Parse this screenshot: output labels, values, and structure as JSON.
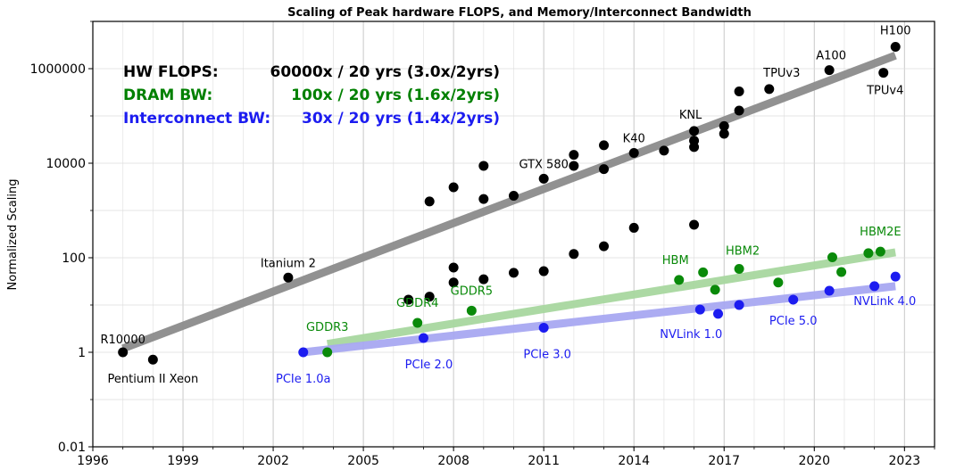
{
  "chart_data": {
    "type": "scatter",
    "title": "Scaling of Peak hardware FLOPS, and Memory/Interconnect Bandwidth",
    "xlabel": "",
    "ylabel": "Normalized Scaling",
    "y_scale": "log",
    "xlim": [
      1996,
      2024
    ],
    "ylim": [
      0.01,
      10000000
    ],
    "x_ticks": [
      "1996",
      "1999",
      "2002",
      "2005",
      "2008",
      "2011",
      "2014",
      "2017",
      "2020",
      "2023"
    ],
    "y_ticks": [
      "0.01",
      "1",
      "100",
      "10000",
      "1000000"
    ],
    "grid": true,
    "legend_position": "top-left",
    "legend": [
      {
        "label": "HW FLOPS:",
        "value": "60000x / 20 yrs (3.0x/2yrs)",
        "color": "#000000"
      },
      {
        "label": "DRAM BW:",
        "value": "100x / 20 yrs (1.6x/2yrs)",
        "color": "#008000"
      },
      {
        "label": "Interconnect BW:",
        "value": "30x / 20 yrs (1.4x/2yrs)",
        "color": "#1c1cf0"
      }
    ],
    "series": [
      {
        "name": "HW FLOPS",
        "color": "#000000",
        "trend_color": "#8c8c8c",
        "trend": [
          [
            1997,
            1.2
          ],
          [
            2022.7,
            1900000
          ]
        ],
        "points": [
          [
            1997.0,
            1.0
          ],
          [
            1998.0,
            0.7
          ],
          [
            2002.5,
            38
          ],
          [
            2006.5,
            13
          ],
          [
            2007.2,
            15
          ],
          [
            2007.2,
            1550
          ],
          [
            2008.0,
            30
          ],
          [
            2008.0,
            62
          ],
          [
            2008.0,
            3100
          ],
          [
            2009.0,
            35
          ],
          [
            2009.0,
            1750
          ],
          [
            2009.0,
            8800
          ],
          [
            2010.0,
            48
          ],
          [
            2010.0,
            2050
          ],
          [
            2011.0,
            52
          ],
          [
            2011.0,
            4700
          ],
          [
            2012.0,
            120
          ],
          [
            2012.0,
            8800
          ],
          [
            2012.0,
            15000
          ],
          [
            2013.0,
            175
          ],
          [
            2013.0,
            7500
          ],
          [
            2013.0,
            24000
          ],
          [
            2014.0,
            430
          ],
          [
            2014.0,
            16500
          ],
          [
            2015.0,
            18500
          ],
          [
            2016.0,
            500
          ],
          [
            2016.0,
            22000
          ],
          [
            2016.0,
            30000
          ],
          [
            2016.0,
            48000
          ],
          [
            2017.0,
            42000
          ],
          [
            2017.0,
            61000
          ],
          [
            2017.5,
            130000
          ],
          [
            2017.5,
            330000
          ],
          [
            2018.5,
            370000
          ],
          [
            2020.5,
            930000
          ],
          [
            2022.3,
            820000
          ],
          [
            2022.7,
            2900000
          ]
        ],
        "labels": [
          {
            "text": "R10000",
            "x": 1997.0,
            "y": 1.0
          },
          {
            "text": "Pentium II Xeon",
            "x": 1998.0,
            "y": 0.7
          },
          {
            "text": "Itanium 2",
            "x": 2002.5,
            "y": 38
          },
          {
            "text": "GTX 580",
            "x": 2011.0,
            "y": 4700
          },
          {
            "text": "K40",
            "x": 2014.0,
            "y": 16500
          },
          {
            "text": "KNL",
            "x": 2016.0,
            "y": 48000
          },
          {
            "text": "TPUv3",
            "x": 2018.5,
            "y": 370000
          },
          {
            "text": "A100",
            "x": 2020.5,
            "y": 930000
          },
          {
            "text": "TPUv4",
            "x": 2022.3,
            "y": 820000
          },
          {
            "text": "H100",
            "x": 2022.7,
            "y": 2900000
          }
        ]
      },
      {
        "name": "DRAM BW",
        "color": "#0a8a0a",
        "trend_color": "#a8d8a0",
        "trend": [
          [
            2003.8,
            1.5
          ],
          [
            2022.7,
            130
          ]
        ],
        "points": [
          [
            2003.8,
            1.0
          ],
          [
            2006.8,
            4.2
          ],
          [
            2008.6,
            7.6
          ],
          [
            2015.5,
            34
          ],
          [
            2016.3,
            49
          ],
          [
            2016.7,
            21
          ],
          [
            2017.5,
            58
          ],
          [
            2018.8,
            30
          ],
          [
            2020.6,
            102
          ],
          [
            2020.9,
            50
          ],
          [
            2021.8,
            125
          ],
          [
            2022.2,
            135
          ]
        ],
        "labels": [
          {
            "text": "GDDR3",
            "x": 2003.8,
            "y": 1.0
          },
          {
            "text": "GDDR4",
            "x": 2006.8,
            "y": 4.2
          },
          {
            "text": "GDDR5",
            "x": 2008.6,
            "y": 7.6
          },
          {
            "text": "HBM",
            "x": 2015.5,
            "y": 34
          },
          {
            "text": "HBM2",
            "x": 2017.5,
            "y": 58
          },
          {
            "text": "HBM2E",
            "x": 2022.2,
            "y": 135
          }
        ]
      },
      {
        "name": "Interconnect BW",
        "color": "#1c1cf0",
        "trend_color": "#a8a8f2",
        "trend": [
          [
            2003,
            1.0
          ],
          [
            2022.7,
            25
          ]
        ],
        "points": [
          [
            2003.0,
            1.0
          ],
          [
            2007.0,
            2.0
          ],
          [
            2011.0,
            3.3
          ],
          [
            2016.2,
            8.0
          ],
          [
            2016.8,
            6.5
          ],
          [
            2017.5,
            10.0
          ],
          [
            2019.3,
            13.0
          ],
          [
            2020.5,
            20.0
          ],
          [
            2022.0,
            25.0
          ],
          [
            2022.7,
            40.0
          ]
        ],
        "labels": [
          {
            "text": "PCIe 1.0a",
            "x": 2003.0,
            "y": 1.0
          },
          {
            "text": "PCIe 2.0",
            "x": 2007.0,
            "y": 2.0
          },
          {
            "text": "PCIe 3.0",
            "x": 2011.0,
            "y": 3.3
          },
          {
            "text": "NVLink 1.0",
            "x": 2016.2,
            "y": 8.0
          },
          {
            "text": "PCIe 5.0",
            "x": 2019.3,
            "y": 13.0
          },
          {
            "text": "NVLink 4.0",
            "x": 2022.7,
            "y": 40.0
          }
        ]
      }
    ]
  }
}
